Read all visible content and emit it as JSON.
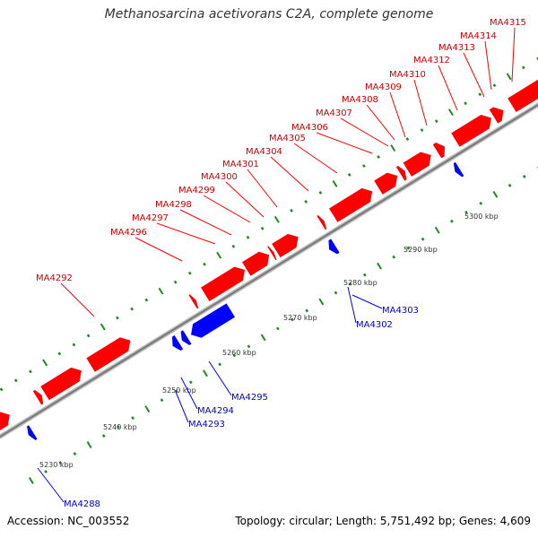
{
  "title": "Methanosarcina acetivorans C2A, complete genome",
  "footer": {
    "accession": "Accession: NC_003552",
    "summary": "Topology: circular; Length: 5,751,492 bp; Genes: 4,609"
  },
  "colors": {
    "plus_strand": "#ff0000",
    "minus_strand": "#0000ff",
    "plus_label": "#cc0000",
    "minus_label": "#0000cc",
    "ticks": "#228822",
    "backbone": "#999999"
  },
  "tick_labels": [
    "5230 kbp",
    "5240 kbp",
    "5250 kbp",
    "5260 kbp",
    "5270 kbp",
    "5280 kbp",
    "5290 kbp",
    "5300 kbp"
  ],
  "plus_genes": [
    "MA4292",
    "MA4296",
    "MA4297",
    "MA4298",
    "MA4299",
    "MA4300",
    "MA4301",
    "MA4304",
    "MA4305",
    "MA4306",
    "MA4307",
    "MA4308",
    "MA4309",
    "MA4310",
    "MA4312",
    "MA4313",
    "MA4314",
    "MA4315"
  ],
  "minus_genes": [
    "MA4288",
    "MA4293",
    "MA4294",
    "MA4295",
    "MA4302",
    "MA4303"
  ]
}
